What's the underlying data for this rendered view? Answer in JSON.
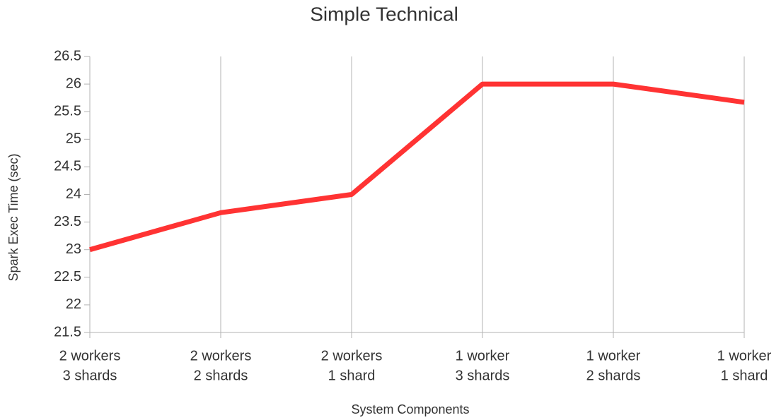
{
  "chart_data": {
    "type": "line",
    "title": "Simple Technical",
    "x_label": "System Components",
    "y_label": "Spark Exec Time (sec)",
    "categories": [
      [
        "2 workers",
        "3 shards"
      ],
      [
        "2 workers",
        "2 shards"
      ],
      [
        "2 workers",
        "1 shard"
      ],
      [
        "1 worker",
        "3 shards"
      ],
      [
        "1 worker",
        "2 shards"
      ],
      [
        "1 worker",
        "1 shard"
      ]
    ],
    "series": [
      {
        "name": "Spark Exec Time (sec)",
        "color": "#ff3333",
        "values": [
          23,
          23.67,
          24,
          26,
          26,
          25.67
        ]
      }
    ],
    "ylim": [
      21.5,
      26.5
    ],
    "yticks": [
      21.5,
      22,
      22.5,
      23,
      23.5,
      24,
      24.5,
      25,
      25.5,
      26,
      26.5
    ],
    "grid": "x"
  }
}
